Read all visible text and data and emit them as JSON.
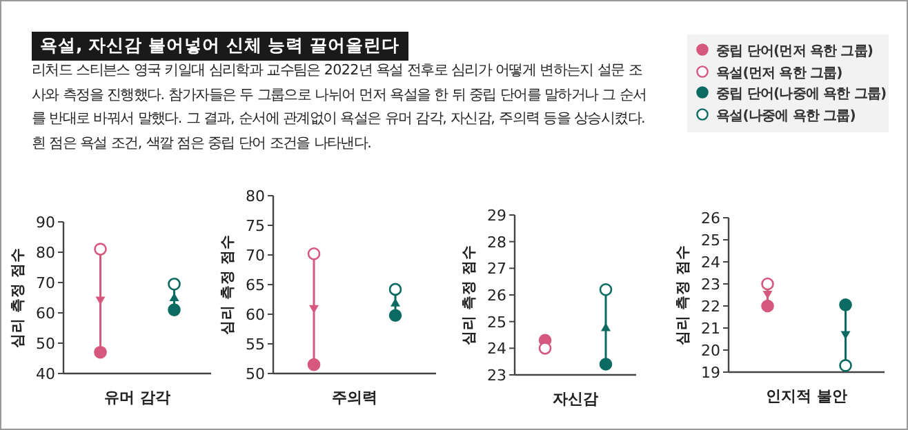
{
  "chart_data": [
    {
      "type": "scatter",
      "title": "욕설, 자신감 불어넣어 신체 능력 끌어올린다",
      "subtitle": "리처드 스티븐스 영국 키일대 심리학과 교수팀은 2022년 욕설 전후로 심리가 어떻게 변하는지 설문 조사와 측정을 진행했다. 참가자들은 두 그룹으로 나뉘어 먼저 욕설을 한 뒤 중립 단어를 말하거나 그 순서를 반대로 바꿔서 말했다. 그 결과, 순서에 관계없이 욕설은 유머 감각, 자신감, 주의력 등을 상승시켰다. 흰 점은 욕설 조건, 색깔 점은 중립 단어 조건을 나타낸다.",
      "legend": "top right",
      "marker": "circle",
      "xlabel": "유머 감각",
      "ylabel": "심리 측정 점수",
      "categories": [
        null,
        null
      ],
      "ylim": [
        40,
        90
      ],
      "yticks": [
        40,
        50,
        60,
        70,
        80,
        90
      ],
      "grid": false,
      "series": [
        {
          "name": "중립 단어(먼저 욕한 그룹)",
          "color": "#d6587f",
          "values": [
            47,
            null
          ]
        },
        {
          "name": "욕설(먼저 욕한 그룹)",
          "color": "#d6587f",
          "values": [
            81,
            null
          ]
        },
        {
          "name": "중립 단어(나중에 욕한 그룹)",
          "color": "#0b6b62",
          "values": [
            null,
            61
          ]
        },
        {
          "name": "욕설(나중에 욕한 그룹)",
          "color": "#0b6b62",
          "values": [
            null,
            69.5
          ]
        }
      ]
    },
    {
      "type": "scatter",
      "marker": "circle",
      "xlabel": "주의력",
      "ylabel": "심리 측정 점수",
      "categories": [
        null,
        null
      ],
      "ylim": [
        50,
        80
      ],
      "yticks": [
        50,
        55,
        60,
        65,
        70,
        75,
        80
      ],
      "grid": false,
      "series": [
        {
          "color": "#d6587f",
          "values": [
            51.5,
            null
          ]
        },
        {
          "color": "#d6587f",
          "values": [
            70.2,
            null
          ]
        },
        {
          "color": "#0b6b62",
          "values": [
            null,
            59.8
          ]
        },
        {
          "color": "#0b6b62",
          "values": [
            null,
            64.2
          ]
        }
      ]
    },
    {
      "type": "scatter",
      "marker": "circle",
      "xlabel": "자신감",
      "ylabel": "심리 측정 점수",
      "categories": [
        null,
        null
      ],
      "ylim": [
        23,
        29
      ],
      "yticks": [
        23,
        24,
        25,
        26,
        27,
        28,
        29
      ],
      "grid": false,
      "series": [
        {
          "color": "#d6587f",
          "values": [
            24.3,
            null
          ]
        },
        {
          "color": "#d6587f",
          "values": [
            24.0,
            null
          ]
        },
        {
          "color": "#0b6b62",
          "values": [
            null,
            23.4
          ]
        },
        {
          "color": "#0b6b62",
          "values": [
            null,
            26.2
          ]
        }
      ]
    },
    {
      "type": "scatter",
      "marker": "circle",
      "xlabel": "인지적 불안",
      "ylabel": "심리 측정 점수",
      "categories": [
        null,
        null
      ],
      "ylim": [
        19,
        26
      ],
      "yticks": [
        19,
        20,
        21,
        22,
        23,
        24,
        25,
        26
      ],
      "grid": false,
      "series": [
        {
          "color": "#d6587f",
          "values": [
            22.0,
            null
          ]
        },
        {
          "color": "#d6587f",
          "values": [
            23.0,
            null
          ]
        },
        {
          "color": "#0b6b62",
          "values": [
            null,
            22.05
          ]
        },
        {
          "color": "#0b6b62",
          "values": [
            null,
            19.3
          ]
        }
      ]
    }
  ]
}
